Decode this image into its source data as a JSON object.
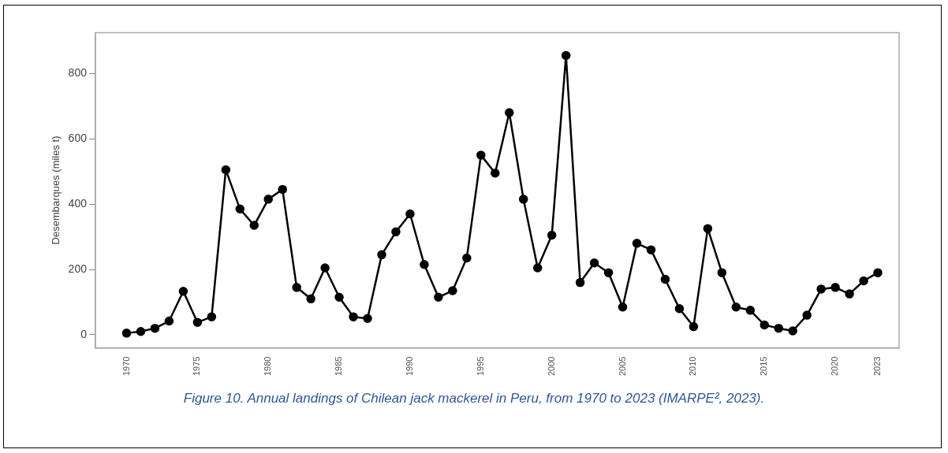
{
  "chart_data": {
    "type": "line",
    "ylabel": "Desembarques (miles t)",
    "annotations": [
      "Figure 10. Annual landings of Chilean jack mackerel in Peru, from 1970 to 2023 (IMARPE², 2023)."
    ],
    "x": [
      1970,
      1971,
      1972,
      1973,
      1974,
      1975,
      1976,
      1977,
      1978,
      1979,
      1980,
      1981,
      1982,
      1983,
      1984,
      1985,
      1986,
      1987,
      1988,
      1989,
      1990,
      1991,
      1992,
      1993,
      1994,
      1995,
      1996,
      1997,
      1998,
      1999,
      2000,
      2001,
      2002,
      2003,
      2004,
      2005,
      2006,
      2007,
      2008,
      2009,
      2010,
      2011,
      2012,
      2013,
      2014,
      2015,
      2016,
      2017,
      2018,
      2019,
      2020,
      2021,
      2022,
      2023
    ],
    "series": [
      {
        "color": "#000000",
        "values": [
          5,
          10,
          20,
          42,
          133,
          38,
          55,
          505,
          385,
          335,
          415,
          445,
          145,
          110,
          205,
          115,
          55,
          50,
          245,
          315,
          370,
          215,
          115,
          135,
          235,
          550,
          495,
          680,
          415,
          205,
          305,
          855,
          160,
          220,
          190,
          85,
          280,
          260,
          170,
          80,
          25,
          325,
          190,
          85,
          75,
          30,
          20,
          12,
          60,
          140,
          145,
          125,
          165,
          190
        ]
      }
    ],
    "xlim": [
      1967.8,
      2024.5
    ],
    "xticks": [
      1970,
      1975,
      1980,
      1985,
      1990,
      1995,
      2000,
      2005,
      2010,
      2015,
      2020,
      2023
    ],
    "ylim": [
      -40,
      925
    ],
    "yticks": [
      0,
      200,
      400,
      600,
      800
    ],
    "grid": false,
    "legend": false,
    "marker": "circle",
    "line_style": "solid"
  }
}
